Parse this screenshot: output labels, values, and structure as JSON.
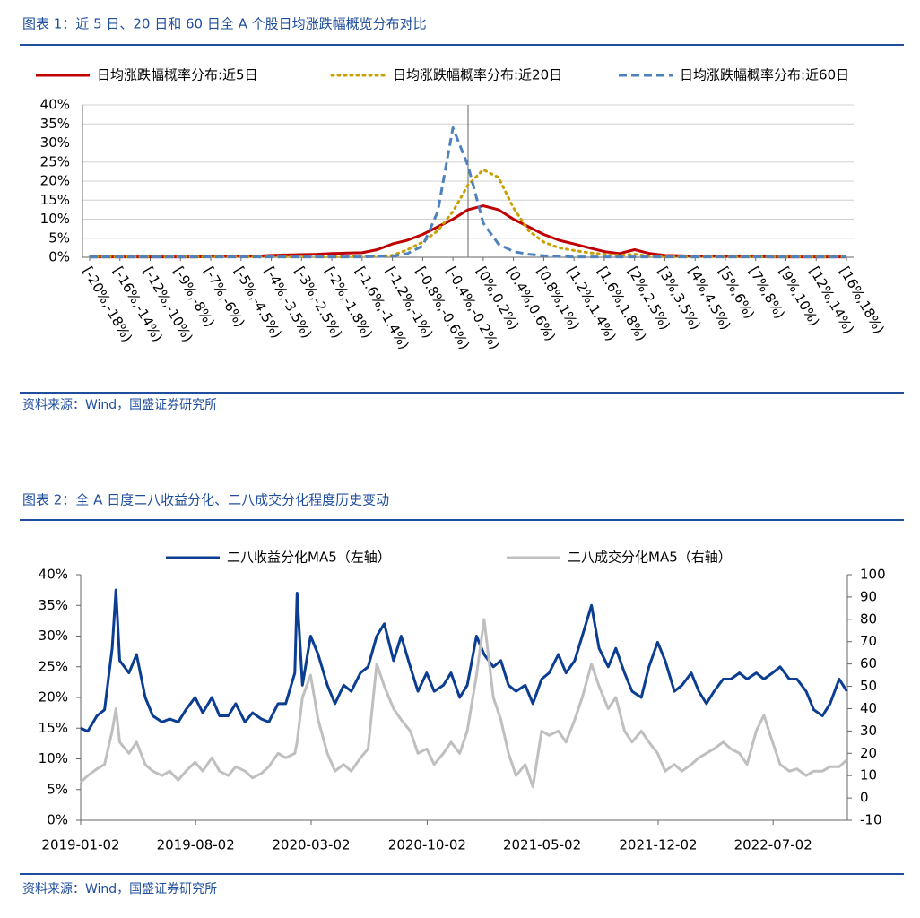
{
  "chart_data": [
    {
      "type": "line",
      "title": "图表 1：近 5 日、20 日和 60 日全 A 个股日均涨跌幅概览分布对比",
      "source": "资料来源：Wind，国盛证券研究所",
      "categories": [
        "[-20%,-18%)",
        null,
        "[-16%,-14%)",
        null,
        "[-12%,-10%)",
        null,
        "[-9%,-8%)",
        null,
        "[-7%,-6%)",
        null,
        "[-5%,-4.5%)",
        null,
        "[-4%,-3.5%)",
        null,
        "[-3%,-2.5%)",
        null,
        "[-2%,-1.8%)",
        null,
        "[-1.6%,-1.4%)",
        null,
        "[-1.2%,-1%)",
        null,
        "[-0.8%,-0.6%)",
        null,
        "[-0.4%,-0.2%)",
        null,
        "[0%,0.2%)",
        null,
        "[0.4%,0.6%)",
        null,
        "[0.8%,1%)",
        null,
        "[1.2%,1.4%)",
        null,
        "[1.6%,1.8%)",
        null,
        "[2%,2.5%)",
        null,
        "[3%,3.5%)",
        null,
        "[4%,4.5%)",
        null,
        "[5%,6%)",
        null,
        "[7%,8%)",
        null,
        "[9%,10%)",
        null,
        "[12%,14%)",
        null,
        "[16%,18%)"
      ],
      "series": [
        {
          "name": "日均涨跌幅概率分布:近5日",
          "color": "#c00000",
          "dash": "solid",
          "values": [
            0.1,
            0.1,
            0.1,
            0.1,
            0.1,
            0.1,
            0.1,
            0.1,
            0.2,
            0.2,
            0.3,
            0.3,
            0.5,
            0.6,
            0.7,
            0.8,
            1,
            1.1,
            1.2,
            2,
            3.5,
            4.5,
            6,
            8,
            10,
            12.5,
            13.5,
            12.5,
            10,
            8,
            6,
            4.5,
            3.5,
            2.5,
            1.5,
            1,
            2,
            1,
            0.5,
            0.4,
            0.3,
            0.3,
            0.2,
            0.2,
            0.2,
            0.1,
            0.1,
            0.1,
            0.1,
            0.1,
            0.1
          ]
        },
        {
          "name": "日均涨跌幅概率分布:近20日",
          "color": "#c8a000",
          "dash": "dot",
          "values": [
            0.1,
            0.1,
            0.1,
            0.1,
            0.1,
            0.1,
            0.1,
            0.1,
            0.1,
            0.1,
            0.1,
            0.1,
            0.1,
            0.1,
            0.1,
            0.1,
            0.1,
            0.1,
            0.2,
            0.3,
            0.5,
            2,
            4,
            7,
            12,
            19,
            23,
            21,
            13,
            7,
            4,
            2.5,
            1.8,
            1.2,
            0.8,
            0.5,
            0.8,
            0.3,
            0.1,
            0.1,
            0.1,
            0.1,
            0.1,
            0.1,
            0.1,
            0.1,
            0.1,
            0.1,
            0.1,
            0.1,
            0.1
          ]
        },
        {
          "name": "日均涨跌幅概率分布:近60日",
          "color": "#4f81bd",
          "dash": "dash",
          "values": [
            0.1,
            0.1,
            0.1,
            0.1,
            0.1,
            0.1,
            0.1,
            0.1,
            0.1,
            0.1,
            0.1,
            0.1,
            0.1,
            0.1,
            0.1,
            0.1,
            0.1,
            0.1,
            0.1,
            0.2,
            0.3,
            1,
            3,
            12,
            34,
            24,
            9,
            3.5,
            1.5,
            0.8,
            0.4,
            0.2,
            0.1,
            0.1,
            0.1,
            0.1,
            0.1,
            0.1,
            0.1,
            0.1,
            0.1,
            0.1,
            0.1,
            0.1,
            0.1,
            0.1,
            0.1,
            0.1,
            0.1,
            0.1,
            0.1
          ]
        }
      ],
      "ylim": [
        0,
        40
      ],
      "yticks": [
        {
          "value": 0,
          "label": "0%"
        },
        {
          "value": 5,
          "label": "5%"
        },
        {
          "value": 10,
          "label": "10%"
        },
        {
          "value": 15,
          "label": "15%"
        },
        {
          "value": 20,
          "label": "20%"
        },
        {
          "value": 25,
          "label": "25%"
        },
        {
          "value": 30,
          "label": "30%"
        },
        {
          "value": 35,
          "label": "35%"
        },
        {
          "value": 40,
          "label": "40%"
        }
      ],
      "grid": true
    },
    {
      "type": "line",
      "title": "图表 2：全 A 日度二八收益分化、二八成交分化程度历史变动",
      "source": "资料来源：Wind，国盛证券研究所",
      "x": [
        "2019-01-02",
        "2019-01-15",
        "2019-02-01",
        "2019-02-15",
        "2019-03-01",
        "2019-03-08",
        "2019-03-15",
        "2019-04-01",
        "2019-04-15",
        "2019-05-01",
        "2019-05-15",
        "2019-06-01",
        "2019-06-15",
        "2019-07-01",
        "2019-07-15",
        "2019-08-01",
        "2019-08-15",
        "2019-09-01",
        "2019-09-15",
        "2019-10-01",
        "2019-10-15",
        "2019-11-01",
        "2019-11-15",
        "2019-12-01",
        "2019-12-15",
        "2020-01-01",
        "2020-01-15",
        "2020-02-01",
        "2020-02-05",
        "2020-02-15",
        "2020-03-01",
        "2020-03-15",
        "2020-04-01",
        "2020-04-15",
        "2020-05-01",
        "2020-05-15",
        "2020-06-01",
        "2020-06-15",
        "2020-07-01",
        "2020-07-15",
        "2020-08-01",
        "2020-08-15",
        "2020-09-01",
        "2020-09-15",
        "2020-10-01",
        "2020-10-15",
        "2020-11-01",
        "2020-11-15",
        "2020-12-01",
        "2020-12-15",
        "2021-01-01",
        "2021-01-15",
        "2021-02-01",
        "2021-02-15",
        "2021-03-01",
        "2021-03-15",
        "2021-04-01",
        "2021-04-15",
        "2021-05-01",
        "2021-05-15",
        "2021-06-01",
        "2021-06-15",
        "2021-07-01",
        "2021-07-15",
        "2021-08-01",
        "2021-08-15",
        "2021-09-01",
        "2021-09-15",
        "2021-10-01",
        "2021-10-15",
        "2021-11-01",
        "2021-11-15",
        "2021-12-01",
        "2021-12-15",
        "2022-01-01",
        "2022-01-15",
        "2022-02-01",
        "2022-02-15",
        "2022-03-01",
        "2022-03-15",
        "2022-04-01",
        "2022-04-15",
        "2022-05-01",
        "2022-05-15",
        "2022-06-01",
        "2022-06-15",
        "2022-07-01",
        "2022-07-15",
        "2022-08-01",
        "2022-08-15",
        "2022-09-01",
        "2022-09-15",
        "2022-10-01",
        "2022-10-15",
        "2022-11-01",
        "2022-11-15"
      ],
      "series": [
        {
          "name": "二八收益分化MA5（左轴）",
          "color": "#0b3d91",
          "values": [
            15,
            14.5,
            17,
            18,
            28,
            37.5,
            26,
            24,
            27,
            20,
            17,
            16,
            16.5,
            16,
            18,
            20,
            17.5,
            20,
            17,
            17,
            19,
            16,
            17.5,
            16.5,
            16,
            19,
            19,
            24,
            37,
            22,
            30,
            27,
            22,
            19,
            22,
            21,
            24,
            25,
            30,
            32,
            26,
            30,
            25,
            21,
            24,
            21,
            22,
            24,
            20,
            22,
            30,
            27,
            25,
            26,
            22,
            21,
            22,
            19,
            23,
            24,
            27,
            24,
            26,
            30,
            35,
            28,
            25,
            28,
            24,
            21,
            20,
            25,
            29,
            26,
            21,
            22,
            24,
            21,
            19,
            21,
            23,
            23,
            24,
            23,
            24,
            23,
            24,
            25,
            23,
            23,
            21,
            18,
            17,
            19,
            23,
            21
          ]
        },
        {
          "name": "二八成交分化MA5（右轴）",
          "color": "#bfbfbf",
          "axis": "y2",
          "values": [
            7,
            10,
            13,
            15,
            30,
            40,
            25,
            20,
            25,
            15,
            12,
            10,
            12,
            8,
            12,
            16,
            12,
            18,
            12,
            10,
            14,
            12,
            9,
            11,
            14,
            20,
            18,
            20,
            25,
            45,
            55,
            35,
            20,
            12,
            15,
            12,
            18,
            22,
            60,
            50,
            40,
            35,
            30,
            20,
            22,
            15,
            20,
            25,
            20,
            30,
            55,
            80,
            45,
            35,
            20,
            10,
            15,
            5,
            30,
            28,
            30,
            25,
            35,
            45,
            60,
            50,
            40,
            45,
            30,
            25,
            30,
            25,
            20,
            12,
            15,
            12,
            15,
            18,
            20,
            22,
            25,
            22,
            20,
            15,
            30,
            37,
            25,
            15,
            12,
            13,
            10,
            12,
            12,
            14,
            14,
            17
          ]
        }
      ],
      "xlim": [
        "2019-01-02",
        "2022-11-16"
      ],
      "xticks": [
        "2019-01-02",
        "2019-08-02",
        "2020-03-02",
        "2020-10-02",
        "2021-05-02",
        "2021-12-02",
        "2022-07-02"
      ],
      "ylim": [
        0,
        40
      ],
      "yticks": [
        {
          "value": 0,
          "label": "0%"
        },
        {
          "value": 5,
          "label": "5%"
        },
        {
          "value": 10,
          "label": "10%"
        },
        {
          "value": 15,
          "label": "15%"
        },
        {
          "value": 20,
          "label": "20%"
        },
        {
          "value": 25,
          "label": "25%"
        },
        {
          "value": 30,
          "label": "30%"
        },
        {
          "value": 35,
          "label": "35%"
        },
        {
          "value": 40,
          "label": "40%"
        }
      ],
      "y2lim": [
        -10,
        100
      ],
      "y2ticks": [
        -10,
        0,
        10,
        20,
        30,
        40,
        50,
        60,
        70,
        80,
        90,
        100
      ],
      "grid": false
    }
  ]
}
